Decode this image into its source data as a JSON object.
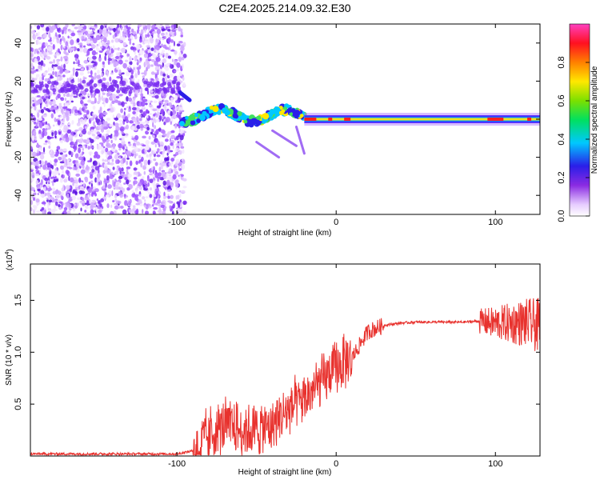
{
  "title": "C2E4.2025.214.09.32.E30",
  "colors": {
    "snr_line": "#e8322e",
    "background": "#ffffff",
    "axis": "#000000"
  },
  "chart_data": [
    {
      "type": "heatmap",
      "title": "C2E4.2025.214.09.32.E30",
      "xlabel": "Height of straight line (km)",
      "ylabel": "Frequency (Hz)",
      "xlim": [
        -192,
        128
      ],
      "ylim": [
        -50,
        50
      ],
      "xticks": [
        -100,
        0,
        100
      ],
      "yticks": [
        -40,
        -20,
        0,
        20,
        40
      ],
      "xtick_labels": [
        "-100",
        "0",
        "100"
      ],
      "ytick_labels": [
        "-40",
        "-20",
        "0",
        "20",
        "40"
      ],
      "colorbar": {
        "label": "Normalized spectral amplitude",
        "range": [
          0,
          1
        ],
        "ticks": [
          0.0,
          0.2,
          0.4,
          0.6,
          0.8
        ],
        "tick_labels": [
          "0.0",
          "0.2",
          "0.4",
          "0.6",
          "0.8"
        ],
        "colormap": "rainbow (white-violet-blue-cyan-green-yellow-red-magenta)"
      },
      "features": [
        {
          "region": "noise",
          "x_range": [
            -192,
            -98
          ],
          "freq_range": [
            -50,
            50
          ],
          "amplitude": [
            0.05,
            0.3
          ]
        },
        {
          "region": "tone_onset",
          "x_range": [
            -98,
            -20
          ],
          "freq_center": 2,
          "amplitude": [
            0.3,
            0.6
          ]
        },
        {
          "region": "steady_tone",
          "x_range": [
            -20,
            128
          ],
          "freq_center": 0,
          "amplitude": [
            0.6,
            1.0
          ]
        }
      ]
    },
    {
      "type": "line",
      "xlabel": "Height of straight line (km)",
      "ylabel": "SNR (10 * v/v)",
      "y_multiplier": "(x10",
      "y_multiplier_exp": "4",
      "xlim": [
        -192,
        128
      ],
      "ylim": [
        0,
        1.85
      ],
      "xticks": [
        -100,
        0,
        100
      ],
      "yticks": [
        0.5,
        1.0,
        1.5
      ],
      "xtick_labels": [
        "-100",
        "0",
        "100"
      ],
      "ytick_labels": [
        "0.5",
        "1.0",
        "1.5"
      ],
      "series": [
        {
          "x": [
            -192,
            -100,
            -90,
            -80,
            -70,
            -60,
            -50,
            -40,
            -30,
            -20,
            -10,
            0,
            10,
            20,
            30,
            40,
            50,
            60,
            70,
            80,
            90,
            100,
            110,
            120,
            128
          ],
          "y": [
            0.02,
            0.02,
            0.05,
            0.2,
            0.3,
            0.25,
            0.25,
            0.3,
            0.45,
            0.55,
            0.7,
            0.85,
            0.95,
            1.2,
            1.26,
            1.28,
            1.29,
            1.29,
            1.29,
            1.29,
            1.3,
            1.28,
            1.28,
            1.28,
            1.25
          ]
        }
      ]
    }
  ]
}
